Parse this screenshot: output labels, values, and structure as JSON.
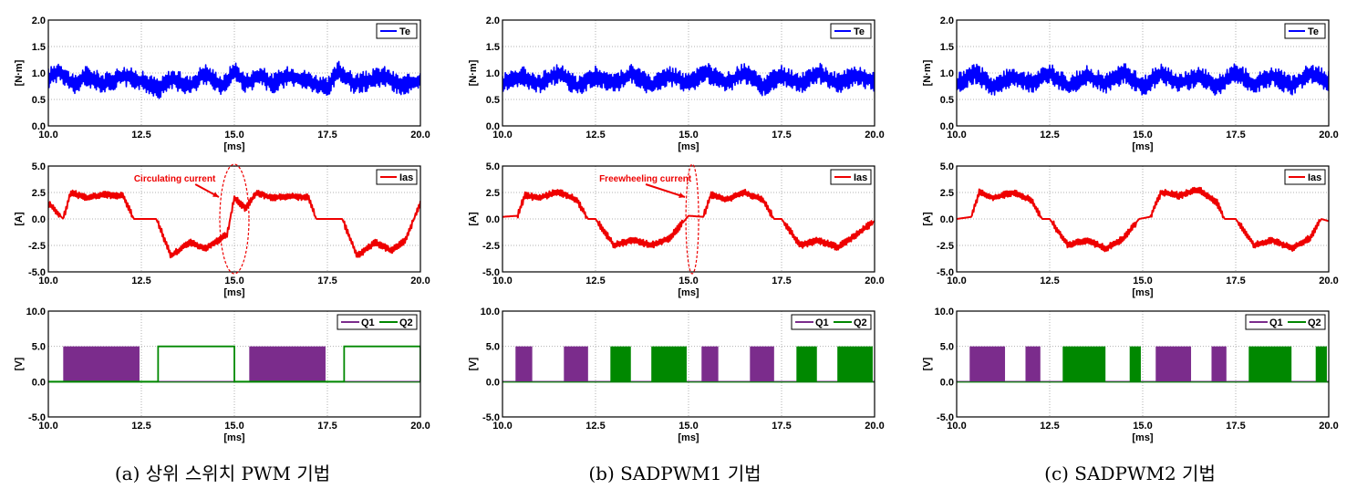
{
  "captions": [
    "(a) 상위 스위치 PWM 기법",
    "(b) SADPWM1 기법",
    "(c) SADPWM2 기법"
  ],
  "colors": {
    "te": "#0000ff",
    "ias": "#ee0000",
    "q1": "#7b2c8c",
    "q2": "#008800"
  },
  "chart_data": [
    {
      "type": "line",
      "panel": "a",
      "row": "torque",
      "ylabel": "[N·m]",
      "xlabel": "[ms]",
      "xlim": [
        10.0,
        20.0
      ],
      "ylim": [
        0.0,
        2.0
      ],
      "xticks": [
        "10.0",
        "12.5",
        "15.0",
        "17.5",
        "20.0"
      ],
      "yticks": [
        "0.0",
        "0.5",
        "1.0",
        "1.5",
        "2.0"
      ],
      "legend": [
        "Te"
      ],
      "legend_position": "top-right",
      "series": [
        {
          "name": "Te",
          "x": [
            10.0,
            10.3,
            10.7,
            11.0,
            11.5,
            12.0,
            12.5,
            13.0,
            13.3,
            13.8,
            14.2,
            14.7,
            15.0,
            15.3,
            15.7,
            16.0,
            16.5,
            17.0,
            17.5,
            17.8,
            18.2,
            18.6,
            19.0,
            19.5,
            20.0
          ],
          "y": [
            0.9,
            1.05,
            0.75,
            0.95,
            0.8,
            0.95,
            0.85,
            0.7,
            0.9,
            0.75,
            1.0,
            0.75,
            1.05,
            0.8,
            0.95,
            0.8,
            0.95,
            0.85,
            0.7,
            1.05,
            0.8,
            0.85,
            0.95,
            0.75,
            0.85
          ]
        }
      ]
    },
    {
      "type": "line",
      "panel": "a",
      "row": "current",
      "ylabel": "[A]",
      "xlabel": "[ms]",
      "xlim": [
        10.0,
        20.0
      ],
      "ylim": [
        -5.0,
        5.0
      ],
      "xticks": [
        "10.0",
        "12.5",
        "15.0",
        "17.5",
        "20.0"
      ],
      "yticks": [
        "-5.0",
        "-2.5",
        "0.0",
        "2.5",
        "5.0"
      ],
      "legend": [
        "Ias"
      ],
      "legend_position": "top-right",
      "annotation": "Circulating current",
      "series": [
        {
          "name": "Ias",
          "x": [
            10.0,
            10.4,
            10.6,
            11.0,
            11.5,
            12.0,
            12.3,
            12.5,
            12.9,
            13.3,
            13.8,
            14.2,
            14.8,
            15.0,
            15.3,
            15.6,
            16.0,
            16.5,
            17.0,
            17.2,
            17.5,
            17.9,
            18.3,
            18.8,
            19.2,
            19.6,
            20.0
          ],
          "y": [
            1.5,
            0.0,
            2.5,
            2.0,
            2.3,
            2.2,
            0.0,
            0.0,
            0.0,
            -3.5,
            -2.2,
            -2.8,
            -1.5,
            2.0,
            1.0,
            2.5,
            2.0,
            2.2,
            2.0,
            0.0,
            0.0,
            0.0,
            -3.5,
            -2.2,
            -3.0,
            -2.0,
            1.5
          ]
        }
      ]
    },
    {
      "type": "line",
      "panel": "a",
      "row": "switch",
      "ylabel": "[V]",
      "xlabel": "[ms]",
      "xlim": [
        10.0,
        20.0
      ],
      "ylim": [
        -5.0,
        10.0
      ],
      "xticks": [
        "10.0",
        "12.5",
        "15.0",
        "17.5",
        "20.0"
      ],
      "yticks": [
        "-5.0",
        "0.0",
        "5.0",
        "10.0"
      ],
      "legend": [
        "Q1",
        "Q2"
      ],
      "legend_position": "top-right",
      "series": [
        {
          "name": "Q1",
          "switching_intervals": [
            [
              10.4,
              12.45
            ],
            [
              15.4,
              17.45
            ]
          ],
          "level": 5.0,
          "off_level": 0.0
        },
        {
          "name": "Q2",
          "steady_on_intervals": [
            [
              12.95,
              15.0
            ],
            [
              17.95,
              20.0
            ]
          ],
          "level": 5.0,
          "off_level": 0.0
        }
      ]
    },
    {
      "type": "line",
      "panel": "b",
      "row": "torque",
      "ylabel": "[N·m]",
      "xlabel": "[ms]",
      "xlim": [
        10.0,
        20.0
      ],
      "ylim": [
        0.0,
        2.0
      ],
      "xticks": [
        "10.0",
        "12.5",
        "15.0",
        "17.5",
        "20.0"
      ],
      "yticks": [
        "0.0",
        "0.5",
        "1.0",
        "1.5",
        "2.0"
      ],
      "legend": [
        "Te"
      ],
      "legend_position": "top-right",
      "series": [
        {
          "name": "Te",
          "x": [
            10.0,
            10.5,
            11.0,
            11.5,
            12.0,
            12.5,
            13.0,
            13.5,
            14.0,
            14.5,
            15.0,
            15.5,
            16.0,
            16.5,
            17.0,
            17.5,
            18.0,
            18.5,
            19.0,
            19.5,
            20.0
          ],
          "y": [
            0.8,
            0.95,
            0.8,
            1.0,
            0.75,
            0.95,
            0.8,
            1.0,
            0.75,
            0.95,
            0.8,
            1.0,
            0.8,
            1.0,
            0.75,
            0.95,
            0.8,
            1.0,
            0.8,
            0.95,
            0.85
          ]
        }
      ]
    },
    {
      "type": "line",
      "panel": "b",
      "row": "current",
      "ylabel": "[A]",
      "xlabel": "[ms]",
      "xlim": [
        10.0,
        20.0
      ],
      "ylim": [
        -5.0,
        5.0
      ],
      "xticks": [
        "10.0",
        "12.5",
        "15.0",
        "17.5",
        "20.0"
      ],
      "yticks": [
        "-5.0",
        "-2.5",
        "0.0",
        "2.5",
        "5.0"
      ],
      "legend": [
        "Ias"
      ],
      "legend_position": "top-right",
      "annotation": "Freewheeling current",
      "series": [
        {
          "name": "Ias",
          "x": [
            10.0,
            10.4,
            10.6,
            11.0,
            11.5,
            12.0,
            12.3,
            12.5,
            13.0,
            13.5,
            14.0,
            14.5,
            15.0,
            15.4,
            15.6,
            16.0,
            16.5,
            17.0,
            17.3,
            17.5,
            18.0,
            18.5,
            19.0,
            19.5,
            20.0
          ],
          "y": [
            0.2,
            0.3,
            2.2,
            2.0,
            2.6,
            1.8,
            0.0,
            0.0,
            -2.5,
            -2.0,
            -2.5,
            -1.8,
            0.3,
            0.2,
            2.3,
            1.8,
            2.5,
            1.8,
            0.0,
            0.0,
            -2.5,
            -2.0,
            -2.7,
            -1.5,
            -0.2
          ]
        }
      ]
    },
    {
      "type": "line",
      "panel": "b",
      "row": "switch",
      "ylabel": "[V]",
      "xlabel": "[ms]",
      "xlim": [
        10.0,
        20.0
      ],
      "ylim": [
        -5.0,
        10.0
      ],
      "xticks": [
        "10.0",
        "12.5",
        "15.0",
        "17.5",
        "20.0"
      ],
      "yticks": [
        "-5.0",
        "0.0",
        "5.0",
        "10.0"
      ],
      "legend": [
        "Q1",
        "Q2"
      ],
      "legend_position": "top-right",
      "series": [
        {
          "name": "Q1",
          "switching_intervals": [
            [
              10.35,
              10.8
            ],
            [
              11.65,
              12.3
            ],
            [
              15.35,
              15.8
            ],
            [
              16.65,
              17.3
            ]
          ],
          "level": 5.0,
          "off_level": 0.0
        },
        {
          "name": "Q2",
          "switching_intervals": [
            [
              12.9,
              13.45
            ],
            [
              14.0,
              14.95
            ],
            [
              17.9,
              18.45
            ],
            [
              19.0,
              19.95
            ]
          ],
          "level": 5.0,
          "off_level": 0.0
        }
      ]
    },
    {
      "type": "line",
      "panel": "c",
      "row": "torque",
      "ylabel": "[N·m]",
      "xlabel": "[ms]",
      "xlim": [
        10.0,
        20.0
      ],
      "ylim": [
        0.0,
        2.0
      ],
      "xticks": [
        "10.0",
        "12.5",
        "15.0",
        "17.5",
        "20.0"
      ],
      "yticks": [
        "0.0",
        "0.5",
        "1.0",
        "1.5",
        "2.0"
      ],
      "legend": [
        "Te"
      ],
      "legend_position": "top-right",
      "series": [
        {
          "name": "Te",
          "x": [
            10.0,
            10.5,
            11.0,
            11.5,
            12.0,
            12.5,
            13.0,
            13.5,
            14.0,
            14.5,
            15.0,
            15.5,
            16.0,
            16.5,
            17.0,
            17.5,
            18.0,
            18.5,
            19.0,
            19.5,
            20.0
          ],
          "y": [
            0.8,
            1.0,
            0.75,
            0.95,
            0.8,
            1.0,
            0.75,
            0.95,
            0.8,
            1.0,
            0.75,
            1.0,
            0.8,
            0.95,
            0.75,
            1.0,
            0.8,
            0.95,
            0.75,
            1.0,
            0.85
          ]
        }
      ]
    },
    {
      "type": "line",
      "panel": "c",
      "row": "current",
      "ylabel": "[A]",
      "xlabel": "[ms]",
      "xlim": [
        10.0,
        20.0
      ],
      "ylim": [
        -5.0,
        5.0
      ],
      "xticks": [
        "10.0",
        "12.5",
        "15.0",
        "17.5",
        "20.0"
      ],
      "yticks": [
        "-5.0",
        "-2.5",
        "0.0",
        "2.5",
        "5.0"
      ],
      "legend": [
        "Ias"
      ],
      "legend_position": "top-right",
      "series": [
        {
          "name": "Ias",
          "x": [
            10.0,
            10.4,
            10.6,
            11.0,
            11.5,
            12.0,
            12.3,
            12.5,
            13.0,
            13.5,
            14.0,
            14.5,
            14.9,
            15.2,
            15.5,
            16.0,
            16.5,
            17.0,
            17.2,
            17.5,
            18.0,
            18.5,
            19.0,
            19.5,
            19.8,
            20.0
          ],
          "y": [
            0.0,
            0.2,
            2.5,
            2.0,
            2.5,
            1.8,
            0.0,
            0.0,
            -2.5,
            -2.0,
            -2.8,
            -1.8,
            0.0,
            0.2,
            2.5,
            2.2,
            2.8,
            1.5,
            0.0,
            0.0,
            -2.5,
            -2.0,
            -2.8,
            -1.8,
            0.0,
            -0.2
          ]
        }
      ]
    },
    {
      "type": "line",
      "panel": "c",
      "row": "switch",
      "ylabel": "[V]",
      "xlabel": "[ms]",
      "xlim": [
        10.0,
        20.0
      ],
      "ylim": [
        -5.0,
        10.0
      ],
      "xticks": [
        "10.0",
        "12.5",
        "15.0",
        "17.5",
        "20.0"
      ],
      "yticks": [
        "-5.0",
        "0.0",
        "5.0",
        "10.0"
      ],
      "legend": [
        "Q1",
        "Q2"
      ],
      "legend_position": "top-right",
      "series": [
        {
          "name": "Q1",
          "switching_intervals": [
            [
              10.35,
              11.3
            ],
            [
              11.85,
              12.25
            ],
            [
              15.35,
              16.3
            ],
            [
              16.85,
              17.25
            ]
          ],
          "level": 5.0,
          "off_level": 0.0
        },
        {
          "name": "Q2",
          "switching_intervals": [
            [
              12.85,
              14.0
            ],
            [
              14.65,
              14.95
            ],
            [
              17.85,
              19.0
            ],
            [
              19.65,
              19.95
            ]
          ],
          "level": 5.0,
          "off_level": 0.0
        }
      ]
    }
  ]
}
